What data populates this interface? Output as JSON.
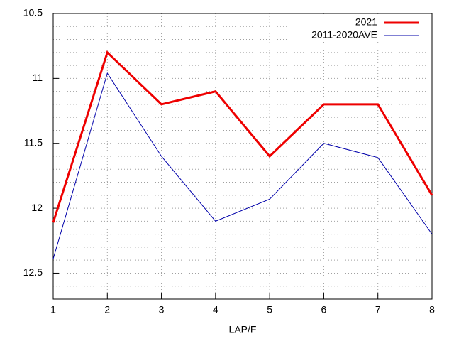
{
  "chart_data": {
    "type": "line",
    "xlabel": "LAP/F",
    "x": [
      1,
      2,
      3,
      4,
      5,
      6,
      7,
      8
    ],
    "series": [
      {
        "name": "2021",
        "color": "#ee0000",
        "width": 3,
        "values": [
          12.11,
          10.8,
          11.2,
          11.1,
          11.6,
          11.2,
          11.2,
          11.9
        ]
      },
      {
        "name": "2011-2020AVE",
        "color": "#0000aa",
        "width": 1,
        "values": [
          12.39,
          10.96,
          11.6,
          12.1,
          11.93,
          11.5,
          11.61,
          12.2
        ]
      }
    ],
    "xlim": [
      1,
      8
    ],
    "xticks": [
      1,
      2,
      3,
      4,
      5,
      6,
      7,
      8
    ],
    "ylim": [
      10.5,
      12.7
    ],
    "yreverse": true,
    "yticks": [
      10.5,
      11,
      11.5,
      12,
      12.5
    ],
    "yminorticks": [
      10.6,
      10.7,
      10.8,
      10.9,
      11.1,
      11.2,
      11.3,
      11.4,
      11.6,
      11.7,
      11.8,
      11.9,
      12.1,
      12.2,
      12.3,
      12.4,
      12.6
    ],
    "grid": true,
    "legend": "top-right"
  }
}
